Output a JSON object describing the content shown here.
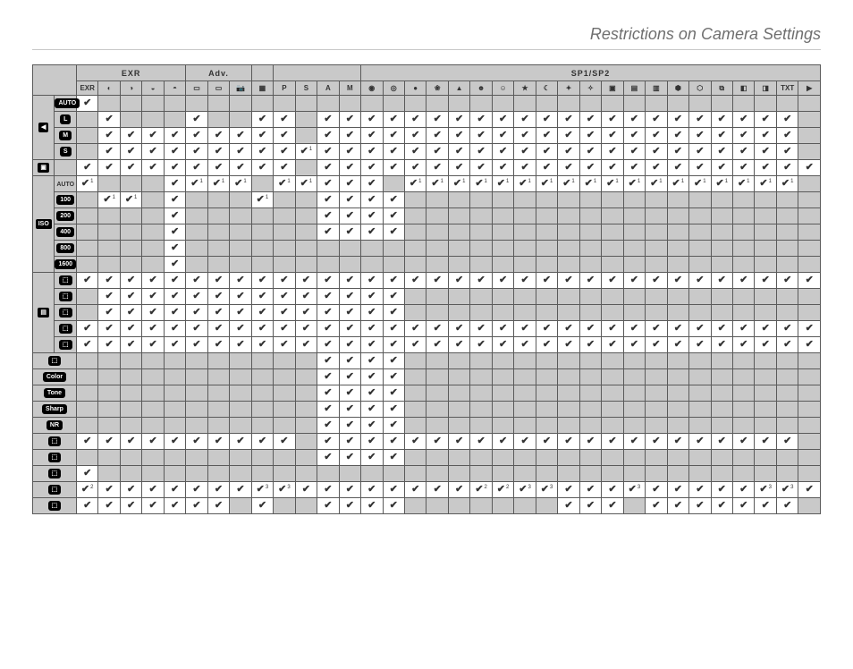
{
  "page": {
    "title": "Restrictions on Camera Settings",
    "background": "#ffffff",
    "rule_color": "#c8c8c8",
    "grid_color": "#5a5a5a",
    "grey_fill": "#c9c9c9",
    "checkmark": "✔"
  },
  "column_groups": [
    {
      "label": "EXR",
      "span": 5
    },
    {
      "label": "Adv.",
      "span": 3
    },
    {
      "label": "",
      "span": 1
    },
    {
      "label": "",
      "span": 4
    },
    {
      "label": "SP1/SP2",
      "span": 21
    }
  ],
  "columns": [
    "EXR",
    "◐",
    "◑",
    "◒",
    "◓",
    "▭",
    "▭",
    "📷",
    "▦",
    "P",
    "S",
    "A",
    "M",
    "◉",
    "◎",
    "●",
    "❀",
    "▲",
    "☻",
    "☺",
    "★",
    "☾",
    "✦",
    "✧",
    "▣",
    "▤",
    "▥",
    "⬢",
    "⬡",
    "⧉",
    "◧",
    "◨",
    "TXT",
    "▶"
  ],
  "rows": [
    {
      "cat": "◀",
      "cat_span": 4,
      "label_pill": "AUTO",
      "cells": [
        "c",
        "g",
        "g",
        "g",
        "g",
        "g",
        "g",
        "g",
        "g",
        "g",
        "g",
        "g",
        "g",
        "g",
        "g",
        "g",
        "g",
        "g",
        "g",
        "g",
        "g",
        "g",
        "g",
        "g",
        "g",
        "g",
        "g",
        "g",
        "g",
        "g",
        "g",
        "g",
        "g",
        "g"
      ]
    },
    {
      "label_pill": "L",
      "cells": [
        "g",
        "c",
        "g",
        "g",
        "g",
        "c",
        "g",
        "g",
        "c",
        "c",
        "g",
        "c",
        "c",
        "c",
        "c",
        "c",
        "c",
        "c",
        "c",
        "c",
        "c",
        "c",
        "c",
        "c",
        "c",
        "c",
        "c",
        "c",
        "c",
        "c",
        "c",
        "c",
        "c",
        "g"
      ]
    },
    {
      "label_pill": "M",
      "cells": [
        "g",
        "c",
        "c",
        "c",
        "c",
        "c",
        "c",
        "c",
        "c",
        "c",
        "g",
        "c",
        "c",
        "c",
        "c",
        "c",
        "c",
        "c",
        "c",
        "c",
        "c",
        "c",
        "c",
        "c",
        "c",
        "c",
        "c",
        "c",
        "c",
        "c",
        "c",
        "c",
        "c",
        "g"
      ]
    },
    {
      "label_pill": "S",
      "cells": [
        "g",
        "c",
        "c",
        "c",
        "c",
        "c",
        "c",
        "c",
        "c",
        "c",
        "c1",
        "c",
        "c",
        "c",
        "c",
        "c",
        "c",
        "c",
        "c",
        "c",
        "c",
        "c",
        "c",
        "c",
        "c",
        "c",
        "c",
        "c",
        "c",
        "c",
        "c",
        "c",
        "c",
        "g"
      ]
    },
    {
      "cat": "▣",
      "cat_span": 1,
      "span_full_label": true,
      "cells": [
        "c",
        "c",
        "c",
        "c",
        "c",
        "c",
        "c",
        "c",
        "c",
        "c",
        "g",
        "c",
        "c",
        "c",
        "c",
        "c",
        "c",
        "c",
        "c",
        "c",
        "c",
        "c",
        "c",
        "c",
        "c",
        "c",
        "c",
        "c",
        "c",
        "c",
        "c",
        "c",
        "c",
        "c"
      ]
    },
    {
      "cat": "ISO",
      "cat_span": 6,
      "label_plain": "AUTO",
      "cells": [
        "c1",
        "g",
        "g",
        "g",
        "c",
        "c1",
        "c1",
        "c1",
        "g",
        "c1",
        "c1",
        "c",
        "c",
        "c",
        "g",
        "c1",
        "c1",
        "c1",
        "c1",
        "c1",
        "c1",
        "c1",
        "c1",
        "c1",
        "c1",
        "c1",
        "c1",
        "c1",
        "c1",
        "c1",
        "c1",
        "c1",
        "c1",
        "g"
      ]
    },
    {
      "label_pill": "100",
      "cells": [
        "g",
        "c1",
        "c1",
        "g",
        "c",
        "g",
        "g",
        "g",
        "c1",
        "g",
        "g",
        "c",
        "c",
        "c",
        "c",
        "g",
        "g",
        "g",
        "g",
        "g",
        "g",
        "g",
        "g",
        "g",
        "g",
        "g",
        "g",
        "g",
        "g",
        "g",
        "g",
        "g",
        "g",
        "g"
      ]
    },
    {
      "label_pill": "200",
      "cells": [
        "g",
        "g",
        "g",
        "g",
        "c",
        "g",
        "g",
        "g",
        "g",
        "g",
        "g",
        "c",
        "c",
        "c",
        "c",
        "g",
        "g",
        "g",
        "g",
        "g",
        "g",
        "g",
        "g",
        "g",
        "g",
        "g",
        "g",
        "g",
        "g",
        "g",
        "g",
        "g",
        "g",
        "g"
      ]
    },
    {
      "label_pill": "400",
      "cells": [
        "g",
        "g",
        "g",
        "g",
        "c",
        "g",
        "g",
        "g",
        "g",
        "g",
        "g",
        "c",
        "c",
        "c",
        "c",
        "g",
        "g",
        "g",
        "g",
        "g",
        "g",
        "g",
        "g",
        "g",
        "g",
        "g",
        "g",
        "g",
        "g",
        "g",
        "g",
        "g",
        "g",
        "g"
      ]
    },
    {
      "label_pill": "800",
      "cells": [
        "g",
        "g",
        "g",
        "g",
        "c",
        "g",
        "g",
        "g",
        "g",
        "g",
        "g",
        "g",
        "g",
        "g",
        "g",
        "g",
        "g",
        "g",
        "g",
        "g",
        "g",
        "g",
        "g",
        "g",
        "g",
        "g",
        "g",
        "g",
        "g",
        "g",
        "g",
        "g",
        "g",
        "g"
      ]
    },
    {
      "label_pill": "1600",
      "cells": [
        "g",
        "g",
        "g",
        "g",
        "c",
        "g",
        "g",
        "g",
        "g",
        "g",
        "g",
        "g",
        "g",
        "g",
        "g",
        "g",
        "g",
        "g",
        "g",
        "g",
        "g",
        "g",
        "g",
        "g",
        "g",
        "g",
        "g",
        "g",
        "g",
        "g",
        "g",
        "g",
        "g",
        "g"
      ]
    },
    {
      "cat": "▤",
      "cat_span": 5,
      "label_pill": "⬚",
      "cells": [
        "c",
        "c",
        "c",
        "c",
        "c",
        "c",
        "c",
        "c",
        "c",
        "c",
        "c",
        "c",
        "c",
        "c",
        "c",
        "c",
        "c",
        "c",
        "c",
        "c",
        "c",
        "c",
        "c",
        "c",
        "c",
        "c",
        "c",
        "c",
        "c",
        "c",
        "c",
        "c",
        "c",
        "c"
      ]
    },
    {
      "label_pill": "⬚",
      "cells": [
        "g",
        "c",
        "c",
        "c",
        "c",
        "c",
        "c",
        "c",
        "c",
        "c",
        "c",
        "c",
        "c",
        "c",
        "c",
        "g",
        "g",
        "g",
        "g",
        "g",
        "g",
        "g",
        "g",
        "g",
        "g",
        "g",
        "g",
        "g",
        "g",
        "g",
        "g",
        "g",
        "g",
        "g"
      ]
    },
    {
      "label_pill": "⬚",
      "cells": [
        "g",
        "c",
        "c",
        "c",
        "c",
        "c",
        "c",
        "c",
        "c",
        "c",
        "c",
        "c",
        "c",
        "c",
        "c",
        "g",
        "g",
        "g",
        "g",
        "g",
        "g",
        "g",
        "g",
        "g",
        "g",
        "g",
        "g",
        "g",
        "g",
        "g",
        "g",
        "g",
        "g",
        "g"
      ]
    },
    {
      "label_pill": "⬚",
      "cells": [
        "c",
        "c",
        "c",
        "c",
        "c",
        "c",
        "c",
        "c",
        "c",
        "c",
        "c",
        "c",
        "c",
        "c",
        "c",
        "c",
        "c",
        "c",
        "c",
        "c",
        "c",
        "c",
        "c",
        "c",
        "c",
        "c",
        "c",
        "c",
        "c",
        "c",
        "c",
        "c",
        "c",
        "c"
      ]
    },
    {
      "label_pill": "⬚",
      "cells": [
        "c",
        "c",
        "c",
        "c",
        "c",
        "c",
        "c",
        "c",
        "c",
        "c",
        "c",
        "c",
        "c",
        "c",
        "c",
        "c",
        "c",
        "c",
        "c",
        "c",
        "c",
        "c",
        "c",
        "c",
        "c",
        "c",
        "c",
        "c",
        "c",
        "c",
        "c",
        "c",
        "c",
        "c"
      ]
    },
    {
      "span_both_labels": true,
      "row_label": "⬚",
      "cells": [
        "g",
        "g",
        "g",
        "g",
        "g",
        "g",
        "g",
        "g",
        "g",
        "g",
        "g",
        "c",
        "c",
        "c",
        "c",
        "g",
        "g",
        "g",
        "g",
        "g",
        "g",
        "g",
        "g",
        "g",
        "g",
        "g",
        "g",
        "g",
        "g",
        "g",
        "g",
        "g",
        "g",
        "g"
      ]
    },
    {
      "span_both_labels": true,
      "row_label": "Color",
      "cells": [
        "g",
        "g",
        "g",
        "g",
        "g",
        "g",
        "g",
        "g",
        "g",
        "g",
        "g",
        "c",
        "c",
        "c",
        "c",
        "g",
        "g",
        "g",
        "g",
        "g",
        "g",
        "g",
        "g",
        "g",
        "g",
        "g",
        "g",
        "g",
        "g",
        "g",
        "g",
        "g",
        "g",
        "g"
      ]
    },
    {
      "span_both_labels": true,
      "row_label": "Tone",
      "cells": [
        "g",
        "g",
        "g",
        "g",
        "g",
        "g",
        "g",
        "g",
        "g",
        "g",
        "g",
        "c",
        "c",
        "c",
        "c",
        "g",
        "g",
        "g",
        "g",
        "g",
        "g",
        "g",
        "g",
        "g",
        "g",
        "g",
        "g",
        "g",
        "g",
        "g",
        "g",
        "g",
        "g",
        "g"
      ]
    },
    {
      "span_both_labels": true,
      "row_label": "Sharp",
      "cells": [
        "g",
        "g",
        "g",
        "g",
        "g",
        "g",
        "g",
        "g",
        "g",
        "g",
        "g",
        "c",
        "c",
        "c",
        "c",
        "g",
        "g",
        "g",
        "g",
        "g",
        "g",
        "g",
        "g",
        "g",
        "g",
        "g",
        "g",
        "g",
        "g",
        "g",
        "g",
        "g",
        "g",
        "g"
      ]
    },
    {
      "span_both_labels": true,
      "row_label": "NR",
      "cells": [
        "g",
        "g",
        "g",
        "g",
        "g",
        "g",
        "g",
        "g",
        "g",
        "g",
        "g",
        "c",
        "c",
        "c",
        "c",
        "g",
        "g",
        "g",
        "g",
        "g",
        "g",
        "g",
        "g",
        "g",
        "g",
        "g",
        "g",
        "g",
        "g",
        "g",
        "g",
        "g",
        "g",
        "g"
      ]
    },
    {
      "span_both_labels": true,
      "row_label": "⬚",
      "cells": [
        "c",
        "c",
        "c",
        "c",
        "c",
        "c",
        "c",
        "c",
        "c",
        "c",
        "g",
        "c",
        "c",
        "c",
        "c",
        "c",
        "c",
        "c",
        "c",
        "c",
        "c",
        "c",
        "c",
        "c",
        "c",
        "c",
        "c",
        "c",
        "c",
        "c",
        "c",
        "c",
        "c",
        "g"
      ]
    },
    {
      "span_both_labels": true,
      "row_label": "⬚",
      "cells": [
        "g",
        "g",
        "g",
        "g",
        "g",
        "g",
        "g",
        "g",
        "g",
        "g",
        "g",
        "c",
        "c",
        "c",
        "c",
        "g",
        "g",
        "g",
        "g",
        "g",
        "g",
        "g",
        "g",
        "g",
        "g",
        "g",
        "g",
        "g",
        "g",
        "g",
        "g",
        "g",
        "g",
        "g"
      ]
    },
    {
      "span_both_labels": true,
      "row_label": "⬚",
      "cells": [
        "c",
        "g",
        "g",
        "g",
        "g",
        "g",
        "g",
        "g",
        "g",
        "g",
        "g",
        "g",
        "g",
        "g",
        "g",
        "g",
        "g",
        "g",
        "g",
        "g",
        "g",
        "g",
        "g",
        "g",
        "g",
        "g",
        "g",
        "g",
        "g",
        "g",
        "g",
        "g",
        "g",
        "g"
      ]
    },
    {
      "span_both_labels": true,
      "row_label": "⬚",
      "cells": [
        "c2",
        "c",
        "c",
        "c",
        "c",
        "c",
        "c",
        "c",
        "c3",
        "c3",
        "c",
        "c",
        "c",
        "c",
        "c",
        "c",
        "c",
        "c",
        "c2",
        "c2",
        "c3",
        "c3",
        "c",
        "c",
        "c",
        "c3",
        "c",
        "c",
        "c",
        "c",
        "c",
        "c3",
        "c3",
        "c"
      ]
    },
    {
      "span_both_labels": true,
      "row_label": "⬚",
      "cells": [
        "c",
        "c",
        "c",
        "c",
        "c",
        "c",
        "c",
        "g",
        "c",
        "g",
        "g",
        "c",
        "c",
        "c",
        "c",
        "g",
        "g",
        "g",
        "g",
        "g",
        "g",
        "g",
        "c",
        "c",
        "c",
        "g",
        "c",
        "c",
        "c",
        "c",
        "c",
        "c",
        "c",
        "g"
      ]
    }
  ]
}
